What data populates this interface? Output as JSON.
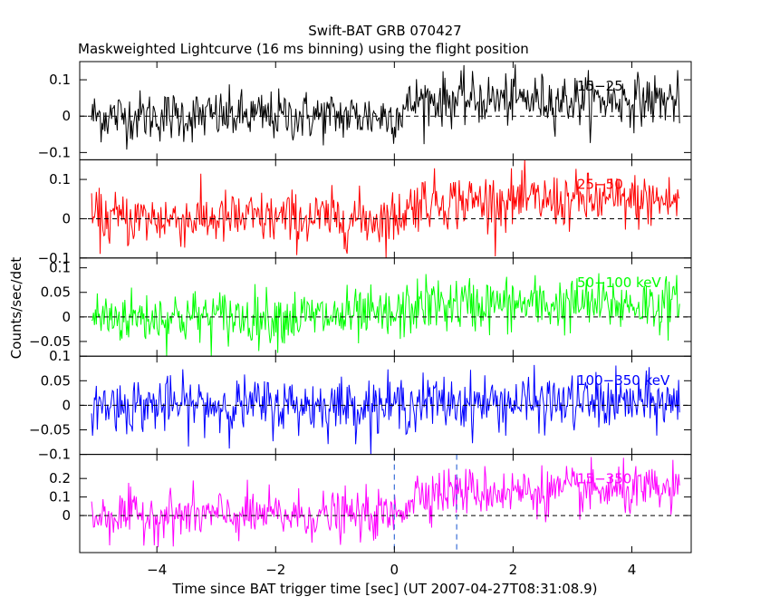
{
  "title": "Swift-BAT GRB 070427",
  "subtitle": "Maskweighted Lightcurve (16 ms binning) using the flight position",
  "ylabel": "Counts/sec/det",
  "xlabel": "Time since BAT trigger time [sec] (UT 2007-04-27T08:31:08.9)",
  "colors": {
    "background": "#ffffff",
    "axes": "#000000",
    "vertical_markers": "#3a6fd8"
  },
  "chart_data": {
    "type": "line",
    "binning_s": 0.016,
    "xlim": [
      -5.3,
      5.0
    ],
    "x_start": -5.1,
    "x_end": 4.8,
    "xticks": [
      -4,
      -2,
      0,
      2,
      4
    ],
    "xtick_labels": [
      "−4",
      "−2",
      "0",
      "2",
      "4"
    ],
    "vertical_markers": [
      0.0,
      1.05
    ],
    "panels": [
      {
        "name": "15-25 keV",
        "label": "15−25",
        "color": "#000000",
        "ylim": [
          -0.12,
          0.15
        ],
        "yticks": [
          -0.1,
          0,
          0.1
        ],
        "ytick_labels": [
          "−0.1",
          "0",
          "0.1"
        ],
        "signal": {
          "pre": 0.0,
          "post": 0.045
        },
        "noise_sigma": 0.035,
        "show_markers": false
      },
      {
        "name": "25-50 keV",
        "label": "25−50",
        "color": "#ff0000",
        "ylim": [
          -0.1,
          0.15
        ],
        "yticks": [
          -0.1,
          0,
          0.1
        ],
        "ytick_labels": [
          "−0.1",
          "0",
          "0.1"
        ],
        "signal": {
          "pre": 0.0,
          "post": 0.045
        },
        "noise_sigma": 0.035,
        "show_markers": false
      },
      {
        "name": "50-100 keV",
        "label": "50−100 keV",
        "color": "#00ff00",
        "ylim": [
          -0.08,
          0.12
        ],
        "yticks": [
          -0.05,
          0,
          0.05,
          0.1
        ],
        "ytick_labels": [
          "−0.05",
          "0",
          "0.05",
          "0.1"
        ],
        "signal": {
          "pre": 0.0,
          "post": 0.025
        },
        "noise_sigma": 0.028,
        "show_markers": false
      },
      {
        "name": "100-350 keV",
        "label": "100−350 keV",
        "color": "#0000ff",
        "ylim": [
          -0.1,
          0.1
        ],
        "yticks": [
          -0.1,
          -0.05,
          0,
          0.05,
          0.1
        ],
        "ytick_labels": [
          "−0.1",
          "−0.05",
          "0",
          "0.05",
          "0.1"
        ],
        "signal": {
          "pre": 0.0,
          "post": 0.005
        },
        "noise_sigma": 0.028,
        "show_markers": false
      },
      {
        "name": "15-350 keV",
        "label": "15−350",
        "color": "#ff00ff",
        "ylim": [
          -0.2,
          0.33
        ],
        "yticks": [
          0,
          0.1,
          0.2
        ],
        "ytick_labels": [
          "0",
          "0.1",
          "0.2"
        ],
        "signal": {
          "pre": 0.0,
          "post": 0.13
        },
        "noise_sigma": 0.065,
        "show_markers": true
      }
    ]
  }
}
